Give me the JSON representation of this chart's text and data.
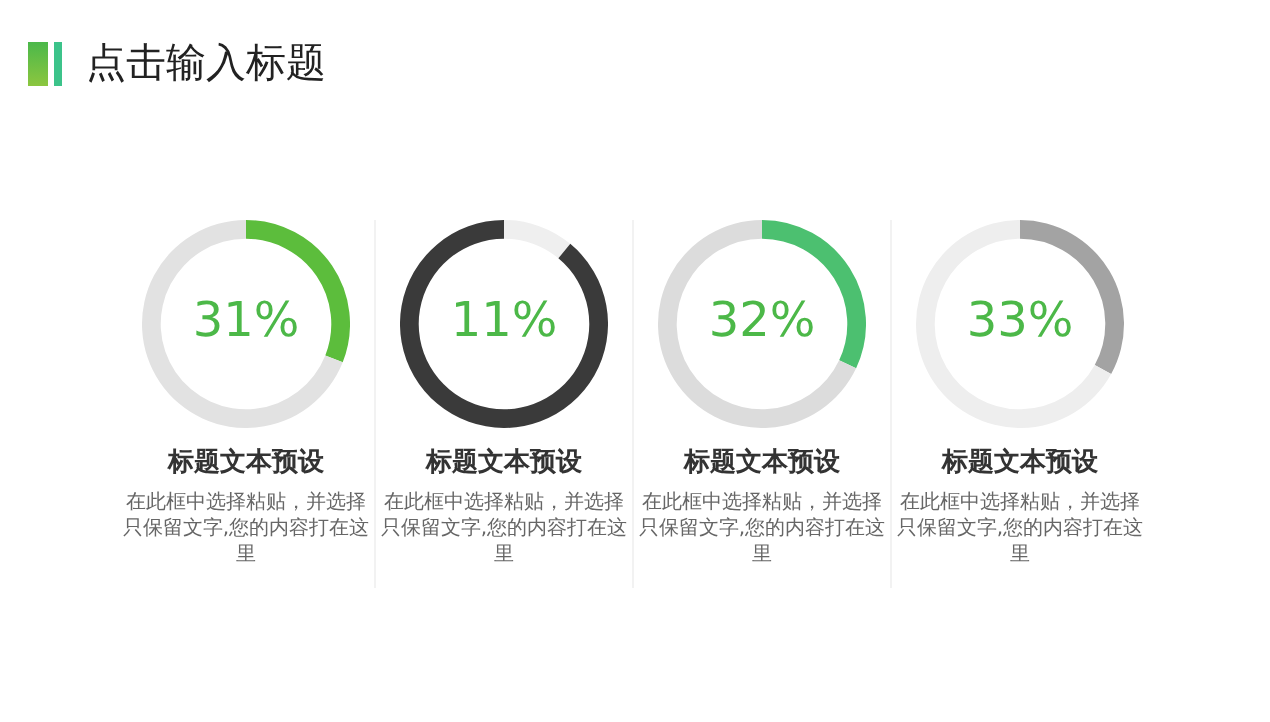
{
  "chart_data": [
    {
      "type": "other",
      "title": "点击输入标题"
    },
    {
      "type": "donut",
      "title": "标题文本预设",
      "annotations": [
        "在此框中选择粘贴，并选择只保留文字,您的内容打在这里"
      ],
      "categories": [
        null,
        null
      ],
      "values": [
        31,
        69
      ],
      "colors": [
        "#5cbd3c",
        "#e2e2e2"
      ],
      "value_labels": [
        "31%",
        null
      ],
      "legend": false
    },
    {
      "type": "donut",
      "title": "标题文本预设",
      "annotations": [
        "在此框中选择粘贴，并选择只保留文字,您的内容打在这里"
      ],
      "categories": [
        null,
        null
      ],
      "values": [
        11,
        89
      ],
      "colors": [
        "#efefef",
        "#3a3a3a"
      ],
      "value_labels": [
        "11%",
        null
      ],
      "legend": false
    },
    {
      "type": "donut",
      "title": "标题文本预设",
      "annotations": [
        "在此框中选择粘贴，并选择只保留文字,您的内容打在这里"
      ],
      "categories": [
        null,
        null
      ],
      "values": [
        32,
        68
      ],
      "colors": [
        "#4cc070",
        "#dcdcdc"
      ],
      "value_labels": [
        "32%",
        null
      ],
      "legend": false
    },
    {
      "type": "donut",
      "title": "标题文本预设",
      "annotations": [
        "在此框中选择粘贴，并选择只保留文字,您的内容打在这里"
      ],
      "categories": [
        null,
        null
      ],
      "values": [
        33,
        67
      ],
      "colors": [
        "#a3a3a3",
        "#eeeeee"
      ],
      "value_labels": [
        "33%",
        null
      ],
      "legend": false
    }
  ]
}
